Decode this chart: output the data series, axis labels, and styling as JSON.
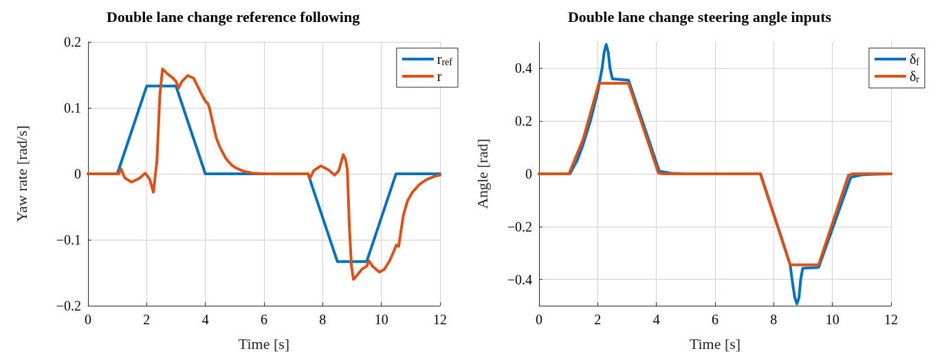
{
  "chart_data": [
    {
      "type": "line",
      "title": "Double lane change reference following",
      "xlabel": "Time [s]",
      "ylabel": "Yaw rate [rad/s]",
      "xlim": [
        0,
        12
      ],
      "xticks": [
        0,
        2,
        4,
        6,
        8,
        10,
        12
      ],
      "ylim": [
        -0.2,
        0.2
      ],
      "yticks": [
        {
          "value": -0.2,
          "label": "−0.2"
        },
        {
          "value": -0.1,
          "label": "−0.1"
        },
        0,
        0.1,
        0.2
      ],
      "grid": true,
      "legend": "top right",
      "marker": "none",
      "line_style": "solid",
      "series": [
        {
          "name": "r$_{ref}$",
          "color": "#0072bd",
          "x": [
            0,
            1,
            2,
            3,
            4,
            7.5,
            8.5,
            9.5,
            10.5,
            12
          ],
          "values": [
            0,
            0,
            0.133,
            0.133,
            0,
            0,
            -0.133,
            -0.133,
            0,
            0
          ]
        },
        {
          "name": "r",
          "color": "#d95319",
          "x": [
            0,
            1.05,
            1.12,
            1.25,
            1.48,
            1.75,
            1.95,
            2.1,
            2.23,
            2.35,
            2.45,
            2.54,
            2.7,
            2.89,
            3.0,
            3.09,
            3.2,
            3.4,
            3.6,
            3.75,
            3.9,
            4.02,
            4.08,
            4.14,
            4.25,
            4.37,
            4.5,
            4.69,
            4.9,
            5.08,
            5.3,
            5.6,
            6.0,
            7.5,
            7.56,
            7.7,
            7.94,
            8.2,
            8.41,
            8.55,
            8.7,
            8.78,
            8.84,
            8.91,
            8.98,
            9.05,
            9.15,
            9.34,
            9.5,
            9.58,
            9.7,
            9.93,
            10.1,
            10.28,
            10.42,
            10.51,
            10.59,
            10.75,
            10.9,
            11.06,
            11.3,
            11.53,
            11.8,
            12
          ],
          "values": [
            0,
            0,
            0.008,
            -0.006,
            -0.0125,
            -0.007,
            0.001,
            -0.008,
            -0.028,
            0.02,
            0.12,
            0.159,
            0.152,
            0.1455,
            0.14,
            0.13,
            0.14,
            0.149,
            0.145,
            0.1316,
            0.118,
            0.109,
            0.107,
            0.1,
            0.078,
            0.055,
            0.04,
            0.024,
            0.013,
            0.008,
            0.004,
            0.001,
            0,
            0,
            -0.007,
            0.005,
            0.012,
            0.006,
            -0.002,
            0.005,
            0.029,
            0.022,
            0.0066,
            -0.08,
            -0.14,
            -0.16,
            -0.155,
            -0.1445,
            -0.14,
            -0.132,
            -0.14,
            -0.149,
            -0.145,
            -0.132,
            -0.118,
            -0.108,
            -0.11,
            -0.063,
            -0.04,
            -0.028,
            -0.016,
            -0.009,
            -0.004,
            -0.002
          ]
        }
      ]
    },
    {
      "type": "line",
      "title": "Double lane change steering angle inputs",
      "xlabel": "Time [s]",
      "ylabel": "Angle [rad]",
      "xlim": [
        0,
        12
      ],
      "xticks": [
        0,
        2,
        4,
        6,
        8,
        10,
        12
      ],
      "ylim": [
        -0.5,
        0.5
      ],
      "yticks": [
        {
          "value": -0.4,
          "label": "−0.4"
        },
        {
          "value": -0.2,
          "label": "−0.2"
        },
        0,
        0.2,
        0.4
      ],
      "grid": true,
      "legend": "top right",
      "marker": "none",
      "line_style": "solid",
      "series": [
        {
          "name": "δ$_{f}$",
          "color": "#0072bd",
          "x": [
            0,
            1.05,
            1.3,
            1.5,
            1.75,
            2.0,
            2.15,
            2.22,
            2.29,
            2.36,
            2.42,
            2.5,
            3.05,
            4.1,
            4.5,
            5,
            7.55,
            8.2,
            8.56,
            8.65,
            8.72,
            8.79,
            8.86,
            8.92,
            8.99,
            9.53,
            10.63,
            11.0,
            11.5,
            12
          ],
          "values": [
            0,
            0,
            0.05,
            0.11,
            0.2,
            0.31,
            0.4,
            0.46,
            0.49,
            0.46,
            0.4,
            0.36,
            0.355,
            0.01,
            0.002,
            0,
            0,
            -0.22,
            -0.345,
            -0.42,
            -0.47,
            -0.493,
            -0.47,
            -0.4,
            -0.358,
            -0.355,
            -0.013,
            -0.004,
            -0.001,
            0
          ]
        },
        {
          "name": "δ$_{r}$",
          "color": "#d95319",
          "x": [
            0,
            1.02,
            1.5,
            2.04,
            3.05,
            4.07,
            4.2,
            7.54,
            8.56,
            9.53,
            10.55,
            10.7,
            12
          ],
          "values": [
            0,
            0,
            0.13,
            0.343,
            0.343,
            0.003,
            0,
            0,
            -0.345,
            -0.345,
            -0.005,
            0,
            0
          ]
        }
      ]
    }
  ]
}
